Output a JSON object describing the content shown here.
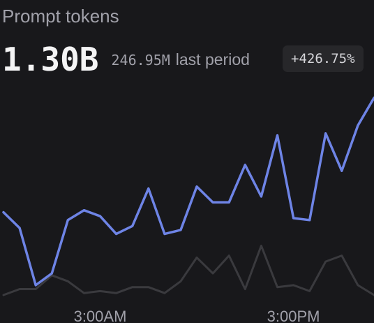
{
  "card": {
    "title": "Prompt tokens",
    "value": "1.30B",
    "previous_value": "246.95M",
    "previous_label": "last period",
    "change": "+426.75%"
  },
  "colors": {
    "current": "#6e84e6",
    "previous": "#3a3a3e",
    "background": "#18181b"
  },
  "chart_data": {
    "type": "line",
    "x_ticks": [
      "3:00AM",
      "3:00PM"
    ],
    "x_tick_index": [
      6,
      18
    ],
    "ylim": [
      0,
      100
    ],
    "grid": false,
    "series": [
      {
        "values": [
          42,
          34,
          5,
          11,
          38,
          43,
          40,
          31,
          35,
          54,
          31,
          33,
          55,
          47,
          47,
          66,
          50,
          81,
          39,
          38,
          82,
          63,
          86,
          100
        ]
      },
      {
        "values": [
          0,
          3,
          3,
          10,
          7,
          1,
          2,
          1,
          4,
          4,
          1,
          7,
          19,
          11,
          20,
          3,
          25,
          4,
          5,
          2,
          17,
          20,
          5,
          0
        ]
      }
    ]
  }
}
